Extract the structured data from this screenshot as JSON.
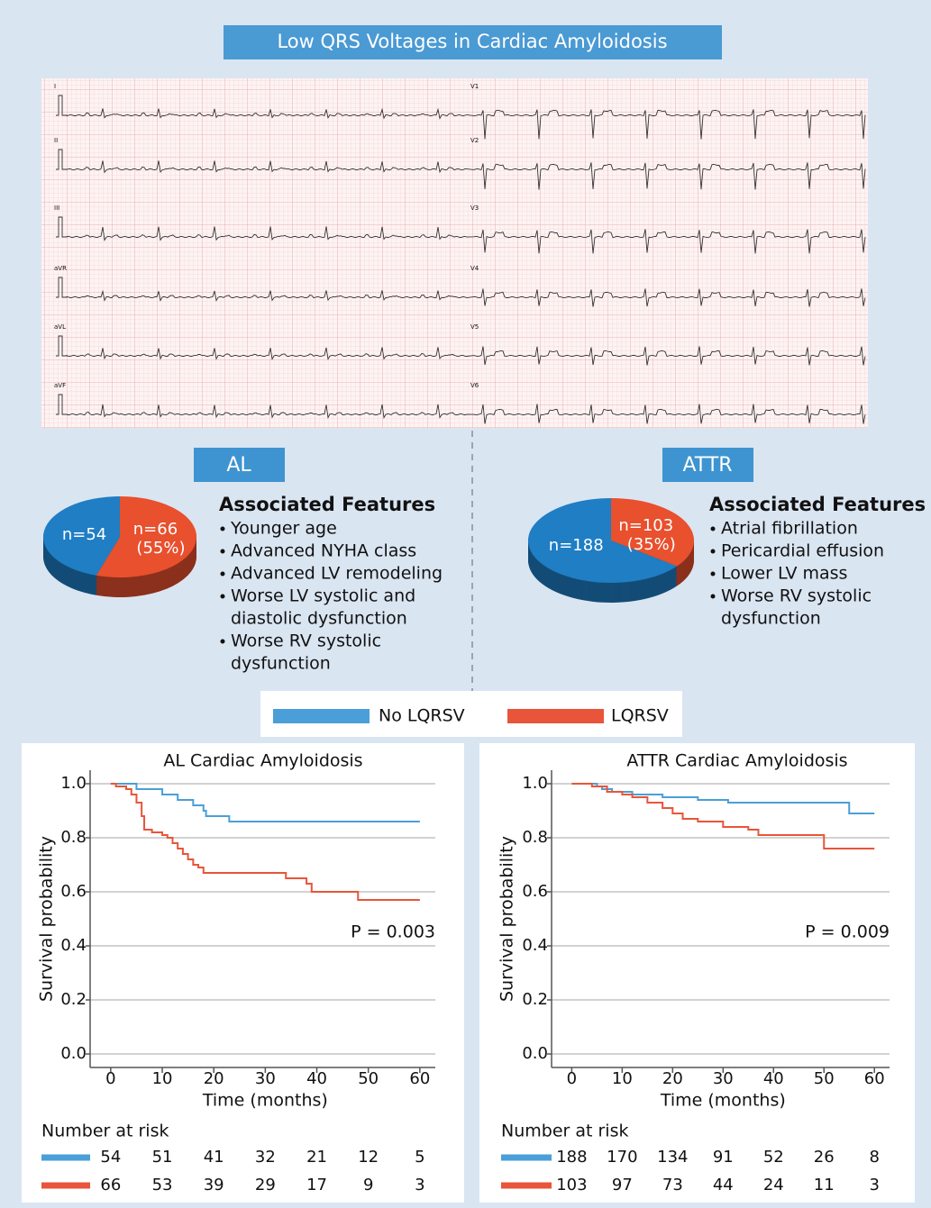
{
  "title": "Low QRS Voltages in Cardiac Amyloidosis",
  "ecg": {
    "leads": [
      "I",
      "II",
      "III",
      "aVR",
      "aVL",
      "aVF",
      "V1",
      "V2",
      "V3",
      "V4",
      "V5",
      "V6"
    ]
  },
  "groups": [
    {
      "label": "AL",
      "features_title": "Associated Features",
      "features": [
        [
          "Younger age"
        ],
        [
          "Advanced NYHA class"
        ],
        [
          "Advanced LV remodeling"
        ],
        [
          "Worse LV systolic and",
          "diastolic dysfunction"
        ],
        [
          "Worse RV systolic",
          "dysfunction"
        ]
      ]
    },
    {
      "label": "ATTR",
      "features_title": "Associated Features",
      "features": [
        [
          "Atrial fibrillation"
        ],
        [
          "Pericardial effusion"
        ],
        [
          "Lower LV mass"
        ],
        [
          "Worse RV systolic",
          "dysfunction"
        ]
      ]
    }
  ],
  "chart_data": [
    {
      "type": "pie",
      "values": [
        54,
        66
      ],
      "value_labels": [
        "n=54",
        "n=66 (55%)"
      ],
      "colors": [
        "#1f7ec4",
        "#e8502e"
      ]
    },
    {
      "type": "pie",
      "values": [
        188,
        103
      ],
      "value_labels": [
        "n=188",
        "n=103 (35%)"
      ],
      "colors": [
        "#1f7ec4",
        "#e8502e"
      ]
    },
    {
      "type": "line",
      "step": true,
      "title": "AL Cardiac Amyloidosis",
      "xlabel": "Time (months)",
      "ylabel": "Survival probability",
      "xlim": [
        -4,
        63
      ],
      "ylim": [
        -0.05,
        1.05
      ],
      "xticks": [
        0,
        10,
        20,
        30,
        40,
        50,
        60
      ],
      "yticks": [
        {
          "value": 0,
          "label": "0.0"
        },
        {
          "value": 0.2,
          "label": "0.2"
        },
        {
          "value": 0.4,
          "label": "0.4"
        },
        {
          "value": 0.6,
          "label": "0.6"
        },
        {
          "value": 0.8,
          "label": "0.8"
        },
        {
          "value": 1,
          "label": "1.0"
        }
      ],
      "grid": true,
      "annotation": "P = 0.003",
      "risk_title": "Number at risk",
      "series": [
        {
          "name": "No LQRSV",
          "color": "#4a9fd8",
          "x": [
            0,
            5,
            8,
            10,
            13,
            16,
            18,
            18.5,
            23,
            60
          ],
          "values": [
            1.0,
            0.98,
            0.98,
            0.96,
            0.94,
            0.92,
            0.9,
            0.88,
            0.86,
            0.86
          ],
          "at_risk": [
            54,
            51,
            41,
            32,
            21,
            12,
            5
          ]
        },
        {
          "name": "LQRSV",
          "color": "#e8553a",
          "x": [
            0,
            1,
            3,
            4,
            5,
            6,
            6.5,
            8,
            10,
            11,
            12,
            13,
            14,
            15,
            16,
            17,
            18,
            34,
            38,
            39,
            48,
            60
          ],
          "values": [
            1.0,
            0.99,
            0.98,
            0.96,
            0.93,
            0.88,
            0.83,
            0.82,
            0.81,
            0.8,
            0.78,
            0.76,
            0.74,
            0.72,
            0.7,
            0.69,
            0.67,
            0.65,
            0.63,
            0.6,
            0.57,
            0.57
          ],
          "at_risk": [
            66,
            53,
            39,
            29,
            17,
            9,
            3
          ]
        }
      ]
    },
    {
      "type": "line",
      "step": true,
      "title": "ATTR Cardiac Amyloidosis",
      "xlabel": "Time (months)",
      "ylabel": "Survival probability",
      "xlim": [
        -4,
        63
      ],
      "ylim": [
        -0.05,
        1.05
      ],
      "xticks": [
        0,
        10,
        20,
        30,
        40,
        50,
        60
      ],
      "yticks": [
        {
          "value": 0,
          "label": "0.0"
        },
        {
          "value": 0.2,
          "label": "0.2"
        },
        {
          "value": 0.4,
          "label": "0.4"
        },
        {
          "value": 0.6,
          "label": "0.6"
        },
        {
          "value": 0.8,
          "label": "0.8"
        },
        {
          "value": 1,
          "label": "1.0"
        }
      ],
      "grid": true,
      "annotation": "P = 0.009",
      "risk_title": "Number at risk",
      "series": [
        {
          "color": "#4a9fd8",
          "x": [
            0,
            5,
            6,
            8,
            12,
            18,
            25,
            31,
            55,
            60
          ],
          "values": [
            1.0,
            0.99,
            0.98,
            0.97,
            0.96,
            0.95,
            0.94,
            0.93,
            0.89,
            0.89
          ],
          "at_risk": [
            188,
            170,
            134,
            91,
            52,
            26,
            8
          ]
        },
        {
          "color": "#e8553a",
          "x": [
            0,
            4,
            7,
            10,
            12,
            15,
            18,
            20,
            22,
            25,
            30,
            35,
            37,
            50,
            60
          ],
          "values": [
            1.0,
            0.99,
            0.97,
            0.96,
            0.95,
            0.93,
            0.91,
            0.89,
            0.87,
            0.86,
            0.84,
            0.83,
            0.81,
            0.76,
            0.76
          ],
          "at_risk": [
            103,
            97,
            73,
            44,
            24,
            11,
            3
          ]
        }
      ]
    }
  ]
}
